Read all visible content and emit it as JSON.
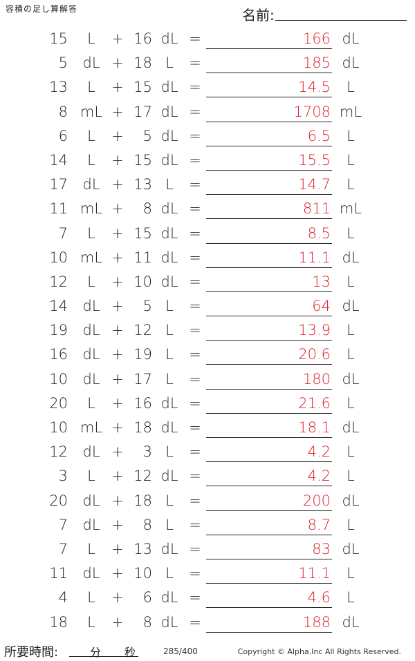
{
  "header": {
    "title": "容積の足し算解答",
    "name_label": "名前:"
  },
  "problems": [
    {
      "a": "15",
      "a_unit": "L",
      "op": "+",
      "b": "16",
      "b_unit": "dL",
      "eq": "=",
      "answer": "166",
      "ans_unit": "dL"
    },
    {
      "a": "5",
      "a_unit": "dL",
      "op": "+",
      "b": "18",
      "b_unit": "L",
      "eq": "=",
      "answer": "185",
      "ans_unit": "dL"
    },
    {
      "a": "13",
      "a_unit": "L",
      "op": "+",
      "b": "15",
      "b_unit": "dL",
      "eq": "=",
      "answer": "14.5",
      "ans_unit": "L"
    },
    {
      "a": "8",
      "a_unit": "mL",
      "op": "+",
      "b": "17",
      "b_unit": "dL",
      "eq": "=",
      "answer": "1708",
      "ans_unit": "mL"
    },
    {
      "a": "6",
      "a_unit": "L",
      "op": "+",
      "b": "5",
      "b_unit": "dL",
      "eq": "=",
      "answer": "6.5",
      "ans_unit": "L"
    },
    {
      "a": "14",
      "a_unit": "L",
      "op": "+",
      "b": "15",
      "b_unit": "dL",
      "eq": "=",
      "answer": "15.5",
      "ans_unit": "L"
    },
    {
      "a": "17",
      "a_unit": "dL",
      "op": "+",
      "b": "13",
      "b_unit": "L",
      "eq": "=",
      "answer": "14.7",
      "ans_unit": "L"
    },
    {
      "a": "11",
      "a_unit": "mL",
      "op": "+",
      "b": "8",
      "b_unit": "dL",
      "eq": "=",
      "answer": "811",
      "ans_unit": "mL"
    },
    {
      "a": "7",
      "a_unit": "L",
      "op": "+",
      "b": "15",
      "b_unit": "dL",
      "eq": "=",
      "answer": "8.5",
      "ans_unit": "L"
    },
    {
      "a": "10",
      "a_unit": "mL",
      "op": "+",
      "b": "11",
      "b_unit": "dL",
      "eq": "=",
      "answer": "11.1",
      "ans_unit": "dL"
    },
    {
      "a": "12",
      "a_unit": "L",
      "op": "+",
      "b": "10",
      "b_unit": "dL",
      "eq": "=",
      "answer": "13",
      "ans_unit": "L"
    },
    {
      "a": "14",
      "a_unit": "dL",
      "op": "+",
      "b": "5",
      "b_unit": "L",
      "eq": "=",
      "answer": "64",
      "ans_unit": "dL"
    },
    {
      "a": "19",
      "a_unit": "dL",
      "op": "+",
      "b": "12",
      "b_unit": "L",
      "eq": "=",
      "answer": "13.9",
      "ans_unit": "L"
    },
    {
      "a": "16",
      "a_unit": "dL",
      "op": "+",
      "b": "19",
      "b_unit": "L",
      "eq": "=",
      "answer": "20.6",
      "ans_unit": "L"
    },
    {
      "a": "10",
      "a_unit": "dL",
      "op": "+",
      "b": "17",
      "b_unit": "L",
      "eq": "=",
      "answer": "180",
      "ans_unit": "dL"
    },
    {
      "a": "20",
      "a_unit": "L",
      "op": "+",
      "b": "16",
      "b_unit": "dL",
      "eq": "=",
      "answer": "21.6",
      "ans_unit": "L"
    },
    {
      "a": "10",
      "a_unit": "mL",
      "op": "+",
      "b": "18",
      "b_unit": "dL",
      "eq": "=",
      "answer": "18.1",
      "ans_unit": "dL"
    },
    {
      "a": "12",
      "a_unit": "dL",
      "op": "+",
      "b": "3",
      "b_unit": "L",
      "eq": "=",
      "answer": "4.2",
      "ans_unit": "L"
    },
    {
      "a": "3",
      "a_unit": "L",
      "op": "+",
      "b": "12",
      "b_unit": "dL",
      "eq": "=",
      "answer": "4.2",
      "ans_unit": "L"
    },
    {
      "a": "20",
      "a_unit": "dL",
      "op": "+",
      "b": "18",
      "b_unit": "L",
      "eq": "=",
      "answer": "200",
      "ans_unit": "dL"
    },
    {
      "a": "7",
      "a_unit": "dL",
      "op": "+",
      "b": "8",
      "b_unit": "L",
      "eq": "=",
      "answer": "8.7",
      "ans_unit": "L"
    },
    {
      "a": "7",
      "a_unit": "L",
      "op": "+",
      "b": "13",
      "b_unit": "dL",
      "eq": "=",
      "answer": "83",
      "ans_unit": "dL"
    },
    {
      "a": "11",
      "a_unit": "dL",
      "op": "+",
      "b": "10",
      "b_unit": "L",
      "eq": "=",
      "answer": "11.1",
      "ans_unit": "L"
    },
    {
      "a": "4",
      "a_unit": "L",
      "op": "+",
      "b": "6",
      "b_unit": "dL",
      "eq": "=",
      "answer": "4.6",
      "ans_unit": "L"
    },
    {
      "a": "18",
      "a_unit": "L",
      "op": "+",
      "b": "8",
      "b_unit": "dL",
      "eq": "=",
      "answer": "188",
      "ans_unit": "dL"
    }
  ],
  "footer": {
    "time_label": "所要時間:",
    "minutes_label": "分",
    "seconds_label": "秒",
    "page_number": "285/400",
    "copyright": "Copyright © Alpha.Inc All Rights Reserved."
  },
  "colors": {
    "answer_text": "#e0202a",
    "body_text": "#222222"
  }
}
